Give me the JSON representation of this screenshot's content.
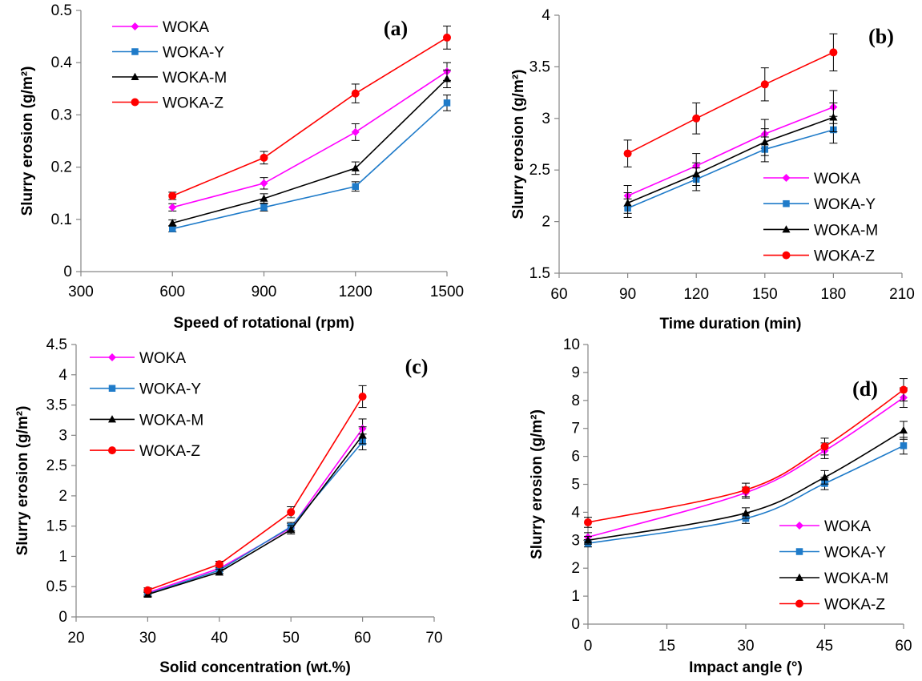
{
  "colors": {
    "WOKA": "#ff00ff",
    "WOKA-Y": "#1f7bc9",
    "WOKA-M": "#000000",
    "WOKA-Z": "#ff0000"
  },
  "chart_data": [
    {
      "type": "line",
      "panel_label": "(a)",
      "xlabel": "Speed of rotational (rpm)",
      "ylabel": "Slurry erosion (g/m²)",
      "xlim": [
        300,
        1500
      ],
      "ylim": [
        0,
        0.5
      ],
      "x_ticks": [
        "300",
        "600",
        "900",
        "1200",
        "1500"
      ],
      "y_ticks": [
        "0",
        "0.1",
        "0.2",
        "0.3",
        "0.4",
        "0.5"
      ],
      "x": [
        600,
        900,
        1200,
        1500
      ],
      "legend_position": "top-left",
      "series": [
        {
          "name": "WOKA",
          "marker": "diamond",
          "values": [
            0.123,
            0.169,
            0.267,
            0.383
          ],
          "errors": [
            0.007,
            0.011,
            0.016,
            0.017
          ]
        },
        {
          "name": "WOKA-Y",
          "marker": "square",
          "values": [
            0.082,
            0.123,
            0.163,
            0.323
          ],
          "errors": [
            0.006,
            0.007,
            0.009,
            0.015
          ]
        },
        {
          "name": "WOKA-M",
          "marker": "triangle",
          "values": [
            0.093,
            0.14,
            0.198,
            0.369
          ],
          "errors": [
            0.006,
            0.009,
            0.012,
            0.017
          ]
        },
        {
          "name": "WOKA-Z",
          "marker": "circle",
          "values": [
            0.145,
            0.218,
            0.341,
            0.448
          ],
          "errors": [
            0.007,
            0.012,
            0.018,
            0.022
          ]
        }
      ]
    },
    {
      "type": "line",
      "panel_label": "(b)",
      "xlabel": "Time duration (min)",
      "ylabel": "Slurry erosion (g/m²)",
      "xlim": [
        60,
        210
      ],
      "ylim": [
        1.5,
        4
      ],
      "x_ticks": [
        "60",
        "90",
        "120",
        "150",
        "180",
        "210"
      ],
      "y_ticks": [
        "1.5",
        "2",
        "2.5",
        "3",
        "3.5",
        "4"
      ],
      "x": [
        90,
        120,
        150,
        180
      ],
      "legend_position": "bottom-right",
      "series": [
        {
          "name": "WOKA",
          "marker": "diamond",
          "values": [
            2.25,
            2.54,
            2.85,
            3.11
          ],
          "errors": [
            0.1,
            0.12,
            0.14,
            0.16
          ]
        },
        {
          "name": "WOKA-Y",
          "marker": "square",
          "values": [
            2.13,
            2.41,
            2.7,
            2.89
          ],
          "errors": [
            0.09,
            0.11,
            0.12,
            0.13
          ]
        },
        {
          "name": "WOKA-M",
          "marker": "triangle",
          "values": [
            2.18,
            2.46,
            2.77,
            3.01
          ],
          "errors": [
            0.1,
            0.11,
            0.13,
            0.14
          ]
        },
        {
          "name": "WOKA-Z",
          "marker": "circle",
          "values": [
            2.66,
            3.0,
            3.33,
            3.64
          ],
          "errors": [
            0.13,
            0.15,
            0.16,
            0.18
          ]
        }
      ]
    },
    {
      "type": "line",
      "panel_label": "(c)",
      "xlabel": "Solid concentration (wt.%)",
      "ylabel": "Slurry erosion (g/m²)",
      "xlim": [
        20,
        70
      ],
      "ylim": [
        0,
        4.5
      ],
      "x_ticks": [
        "20",
        "30",
        "40",
        "50",
        "60",
        "70"
      ],
      "y_ticks": [
        "0",
        "0.5",
        "1",
        "1.5",
        "2",
        "2.5",
        "3",
        "3.5",
        "4",
        "4.5"
      ],
      "x": [
        30,
        40,
        50,
        60
      ],
      "legend_position": "top-left",
      "series": [
        {
          "name": "WOKA",
          "marker": "diamond",
          "values": [
            0.4,
            0.8,
            1.47,
            3.11
          ],
          "errors": [
            0.04,
            0.05,
            0.07,
            0.16
          ]
        },
        {
          "name": "WOKA-Y",
          "marker": "square",
          "values": [
            0.38,
            0.77,
            1.49,
            2.89
          ],
          "errors": [
            0.04,
            0.05,
            0.07,
            0.13
          ]
        },
        {
          "name": "WOKA-M",
          "marker": "triangle",
          "values": [
            0.37,
            0.74,
            1.44,
            3.0
          ],
          "errors": [
            0.04,
            0.05,
            0.07,
            0.14
          ]
        },
        {
          "name": "WOKA-Z",
          "marker": "circle",
          "values": [
            0.44,
            0.87,
            1.73,
            3.64
          ],
          "errors": [
            0.04,
            0.05,
            0.09,
            0.18
          ]
        }
      ]
    },
    {
      "type": "line",
      "panel_label": "(d)",
      "xlabel": "Impact angle (°)",
      "ylabel": "Slurry erosion (g/m²)",
      "xlim": [
        0,
        60
      ],
      "ylim": [
        0,
        10
      ],
      "x_ticks": [
        "0",
        "15",
        "30",
        "45",
        "60"
      ],
      "y_ticks": [
        "0",
        "1",
        "2",
        "3",
        "4",
        "5",
        "6",
        "7",
        "8",
        "9",
        "10"
      ],
      "x": [
        0,
        30,
        45,
        60
      ],
      "legend_position": "bottom-right",
      "series": [
        {
          "name": "WOKA",
          "marker": "diamond",
          "values": [
            3.11,
            4.7,
            6.2,
            8.1
          ],
          "errors": [
            0.16,
            0.2,
            0.28,
            0.35
          ]
        },
        {
          "name": "WOKA-Y",
          "marker": "square",
          "values": [
            2.89,
            3.78,
            5.03,
            6.38
          ],
          "errors": [
            0.13,
            0.18,
            0.22,
            0.3
          ]
        },
        {
          "name": "WOKA-M",
          "marker": "triangle",
          "values": [
            3.0,
            3.97,
            5.25,
            6.93
          ],
          "errors": [
            0.14,
            0.19,
            0.24,
            0.32
          ]
        },
        {
          "name": "WOKA-Z",
          "marker": "circle",
          "values": [
            3.64,
            4.8,
            6.35,
            8.38
          ],
          "errors": [
            0.18,
            0.24,
            0.3,
            0.4
          ]
        }
      ]
    }
  ]
}
